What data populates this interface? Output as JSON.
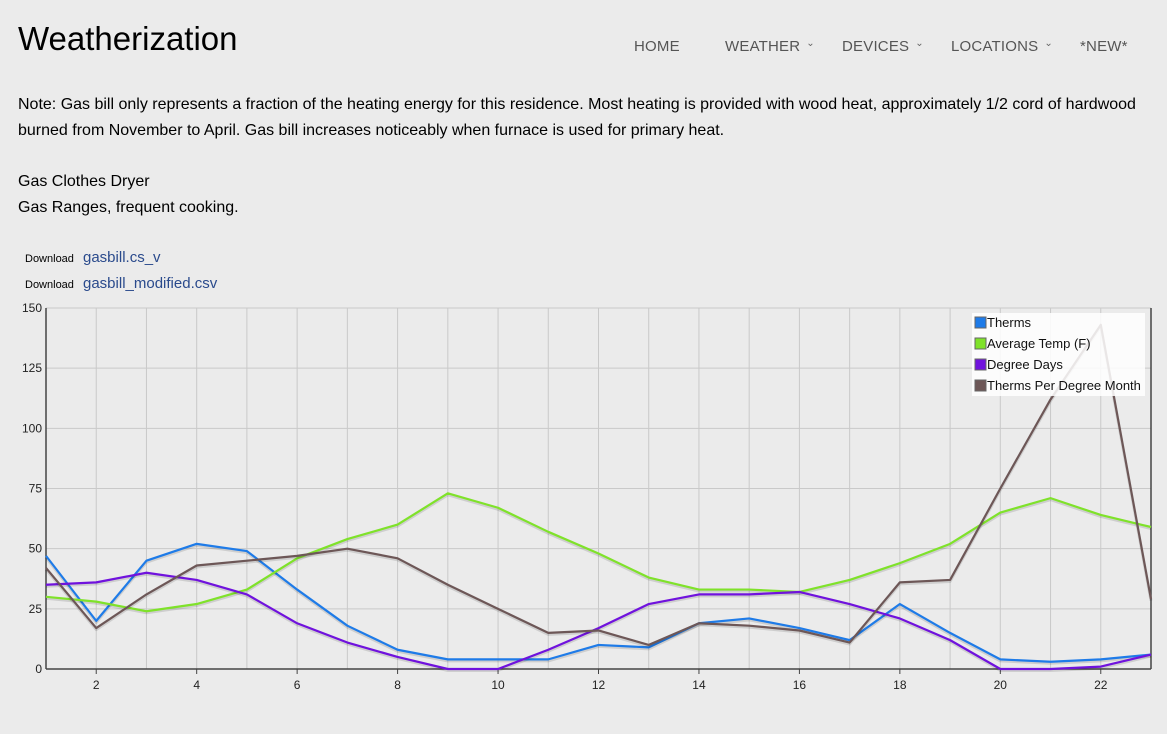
{
  "site": {
    "title": "Weatherization"
  },
  "nav": {
    "items": [
      {
        "label": "HOME",
        "dropdown": false
      },
      {
        "label": "WEATHER",
        "dropdown": true
      },
      {
        "label": "DEVICES",
        "dropdown": true
      },
      {
        "label": "LOCATIONS",
        "dropdown": true
      },
      {
        "label": "*NEW*",
        "dropdown": false
      }
    ]
  },
  "content": {
    "note": "Note: Gas bill only represents a fraction of the heating energy for this residence. Most heating is provided with wood heat, approximately 1/2 cord of hardwood burned from November to April. Gas bill increases noticeably when furnace is used for primary heat.",
    "appliances": [
      "Gas Clothes Dryer",
      "Gas Ranges, frequent cooking."
    ]
  },
  "downloads": [
    {
      "label": "Download",
      "link": "gasbill.cs_v"
    },
    {
      "label": "Download",
      "link": "gasbill_modified.csv"
    }
  ],
  "chart_data": {
    "type": "line",
    "xlim": [
      1,
      23
    ],
    "ylim": [
      0,
      150
    ],
    "x_ticks": [
      2,
      4,
      6,
      8,
      10,
      12,
      14,
      16,
      18,
      20,
      22
    ],
    "y_ticks": [
      0,
      25,
      50,
      75,
      100,
      125,
      150
    ],
    "grid": true,
    "legend_position": "top-right",
    "x": [
      1,
      2,
      3,
      4,
      5,
      6,
      7,
      8,
      9,
      10,
      11,
      12,
      13,
      14,
      15,
      16,
      17,
      18,
      19,
      20,
      21,
      22,
      23
    ],
    "series": [
      {
        "name": "Therms",
        "color": "#1e7be8",
        "values": [
          47,
          20,
          45,
          52,
          49,
          33,
          18,
          8,
          4,
          4,
          4,
          10,
          9,
          19,
          21,
          17,
          12,
          27,
          15,
          4,
          3,
          4,
          6
        ]
      },
      {
        "name": "Average Temp (F)",
        "color": "#7fe22a",
        "values": [
          30,
          28,
          24,
          27,
          33,
          46,
          54,
          60,
          73,
          67,
          57,
          48,
          38,
          33,
          33,
          32,
          37,
          44,
          52,
          65,
          71,
          64,
          59
        ]
      },
      {
        "name": "Degree Days",
        "color": "#7012dd",
        "values": [
          35,
          36,
          40,
          37,
          31,
          19,
          11,
          5,
          0,
          0,
          8,
          17,
          27,
          31,
          31,
          32,
          27,
          21,
          12,
          0,
          0,
          1,
          6
        ]
      },
      {
        "name": "Therms Per Degree Month",
        "color": "#6d5757",
        "values": [
          42,
          17,
          31,
          43,
          45,
          47,
          50,
          46,
          35,
          25,
          15,
          16,
          10,
          19,
          18,
          16,
          11,
          36,
          37,
          75,
          112,
          143,
          29
        ]
      }
    ]
  }
}
